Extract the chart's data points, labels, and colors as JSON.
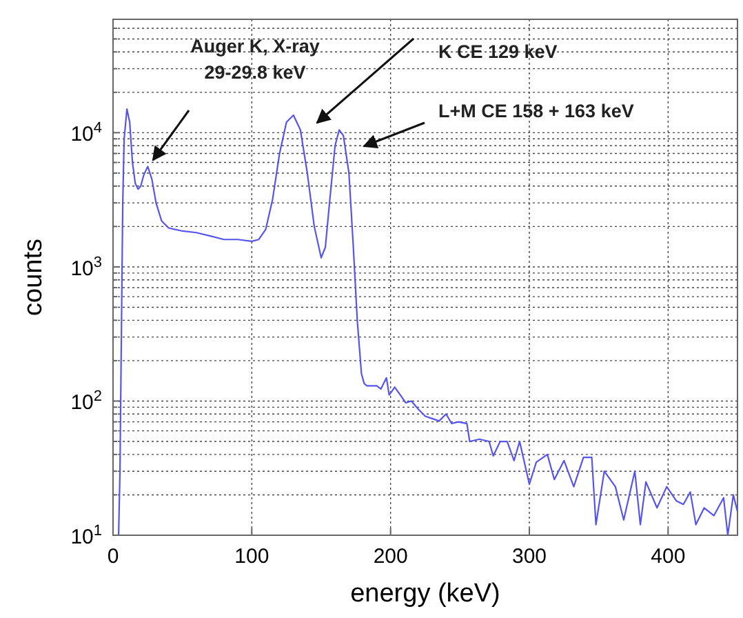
{
  "chart_data": {
    "type": "line",
    "xlabel": "energy (keV)",
    "ylabel": "counts",
    "log": "y",
    "grid": true,
    "marker": "none",
    "line_style": "solid",
    "xlim": [
      0,
      450
    ],
    "xticks": [
      0,
      100,
      200,
      300,
      400
    ],
    "ylim": [
      10,
      70000
    ],
    "yticks": [
      {
        "value": 10,
        "label": "10$^{1}$"
      },
      {
        "value": 20,
        "label": null
      },
      {
        "value": 30,
        "label": null
      },
      {
        "value": 40,
        "label": null
      },
      {
        "value": 50,
        "label": null
      },
      {
        "value": 60,
        "label": null
      },
      {
        "value": 70,
        "label": null
      },
      {
        "value": 80,
        "label": null
      },
      {
        "value": 90,
        "label": null
      },
      {
        "value": 100,
        "label": "10$^{2}$"
      },
      {
        "value": 200,
        "label": null
      },
      {
        "value": 300,
        "label": null
      },
      {
        "value": 400,
        "label": null
      },
      {
        "value": 500,
        "label": null
      },
      {
        "value": 600,
        "label": null
      },
      {
        "value": 700,
        "label": null
      },
      {
        "value": 800,
        "label": null
      },
      {
        "value": 900,
        "label": null
      },
      {
        "value": 1000,
        "label": "10$^{3}$"
      },
      {
        "value": 2000,
        "label": null
      },
      {
        "value": 3000,
        "label": null
      },
      {
        "value": 4000,
        "label": null
      },
      {
        "value": 5000,
        "label": null
      },
      {
        "value": 6000,
        "label": null
      },
      {
        "value": 7000,
        "label": null
      },
      {
        "value": 8000,
        "label": null
      },
      {
        "value": 9000,
        "label": null
      },
      {
        "value": 10000,
        "label": "10$^{4}$"
      },
      {
        "value": 20000,
        "label": null
      },
      {
        "value": 30000,
        "label": null
      },
      {
        "value": 40000,
        "label": null
      },
      {
        "value": 50000,
        "label": null
      },
      {
        "value": 60000,
        "label": null
      },
      {
        "value": 70000,
        "label": null
      }
    ],
    "series": [
      {
        "color": "#5555ee",
        "x": [
          4,
          5,
          6,
          7,
          8,
          10,
          12,
          14,
          16,
          18,
          20,
          22,
          25,
          28,
          31,
          35,
          40,
          50,
          60,
          70,
          80,
          90,
          100,
          105,
          110,
          115,
          120,
          125,
          130,
          135,
          140,
          145,
          150,
          153,
          156,
          160,
          163,
          166,
          170,
          173,
          176,
          179,
          181,
          183,
          190,
          193,
          197,
          199,
          203,
          207,
          211,
          215,
          220,
          225,
          230,
          235,
          240,
          244,
          249,
          255,
          257,
          264,
          271,
          274,
          279,
          284,
          289,
          293,
          300,
          305,
          313,
          318,
          325,
          332,
          339,
          345,
          348,
          354,
          362,
          368,
          376,
          380,
          384,
          392,
          399,
          406,
          411,
          416,
          420,
          426,
          433,
          440,
          443,
          447,
          450
        ],
        "values": [
          10,
          30,
          300,
          3000,
          9000,
          15000,
          12000,
          6000,
          4200,
          3800,
          4000,
          4800,
          5600,
          4500,
          3000,
          2200,
          1950,
          1850,
          1800,
          1700,
          1600,
          1600,
          1550,
          1600,
          1900,
          3200,
          7000,
          12000,
          13500,
          10500,
          5000,
          2000,
          1170,
          1400,
          3000,
          8000,
          10500,
          9500,
          5000,
          1500,
          400,
          160,
          135,
          130,
          130,
          123,
          149,
          111,
          127,
          111,
          97,
          100,
          87,
          77,
          74,
          71,
          80,
          68,
          70,
          68,
          50,
          52,
          50,
          39,
          50,
          50,
          36,
          50,
          24,
          35,
          40,
          26,
          36,
          23,
          38,
          38,
          12,
          30,
          23,
          13,
          30,
          12,
          25,
          16,
          23,
          18,
          17,
          21,
          12,
          16,
          14,
          19,
          10,
          20,
          15
        ]
      }
    ],
    "annotations": [
      "Auger K, X-ray\n29-29.8 keV",
      "K CE 129 keV",
      "L+M CE 158 + 163 keV"
    ]
  }
}
